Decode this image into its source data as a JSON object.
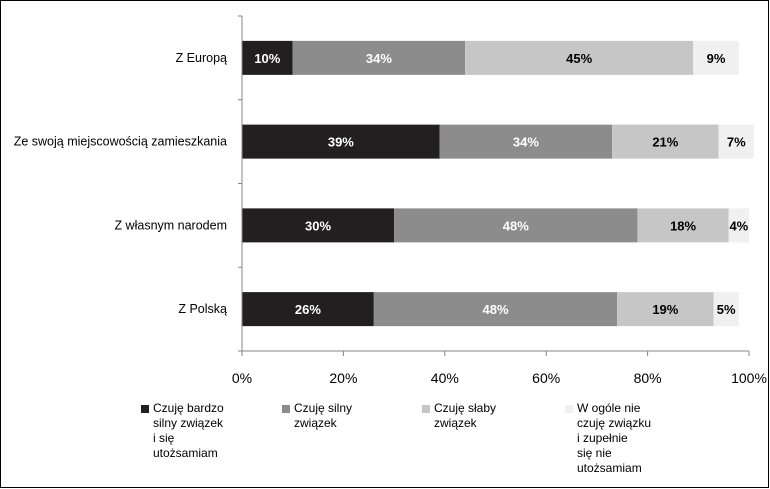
{
  "chart_data": {
    "type": "bar",
    "orientation": "horizontal",
    "stacked": true,
    "categories": [
      "Z Europą",
      "Ze swoją miejscowością zamieszkania",
      "Z własnym narodem",
      "Z Polską"
    ],
    "series": [
      {
        "name": "Czuję bardzo silny związek i się utożsamiam",
        "color": "#231f20",
        "label_color": "#ffffff",
        "values": [
          10,
          39,
          30,
          26
        ],
        "labels": [
          "10%",
          "39%",
          "30%",
          "26%"
        ]
      },
      {
        "name": "Czuję silny związek",
        "color": "#8c8c8c",
        "label_color": "#ffffff",
        "values": [
          34,
          34,
          48,
          48
        ],
        "labels": [
          "34%",
          "34%",
          "48%",
          "48%"
        ]
      },
      {
        "name": "Czuję słaby związek",
        "color": "#c6c6c6",
        "label_color": "#000000",
        "values": [
          45,
          21,
          18,
          19
        ],
        "labels": [
          "45%",
          "21%",
          "18%",
          "19%"
        ]
      },
      {
        "name": "W ogóle nie czuję związku i zupełnie się nie utożsamiam",
        "color": "#f0f0f0",
        "label_color": "#000000",
        "values": [
          9,
          7,
          4,
          5
        ],
        "labels": [
          "9%",
          "7%",
          "4%",
          "5%"
        ]
      }
    ],
    "xlim": [
      0,
      100
    ],
    "xticks": [
      0,
      20,
      40,
      60,
      80,
      100
    ],
    "xtick_labels": [
      "0%",
      "20%",
      "40%",
      "60%",
      "80%",
      "100%"
    ],
    "grid": false,
    "legend_position": "bottom"
  },
  "legend": [
    {
      "text": "Czuję bardzo\nsilny związek\ni się\nutożsamiam"
    },
    {
      "text": "Czuję silny\nzwiązek"
    },
    {
      "text": "Czuję słaby\nzwiązek"
    },
    {
      "text": "W ogóle nie\nczuję związku\ni zupełnie\nsię nie\nutożsamiam"
    }
  ]
}
